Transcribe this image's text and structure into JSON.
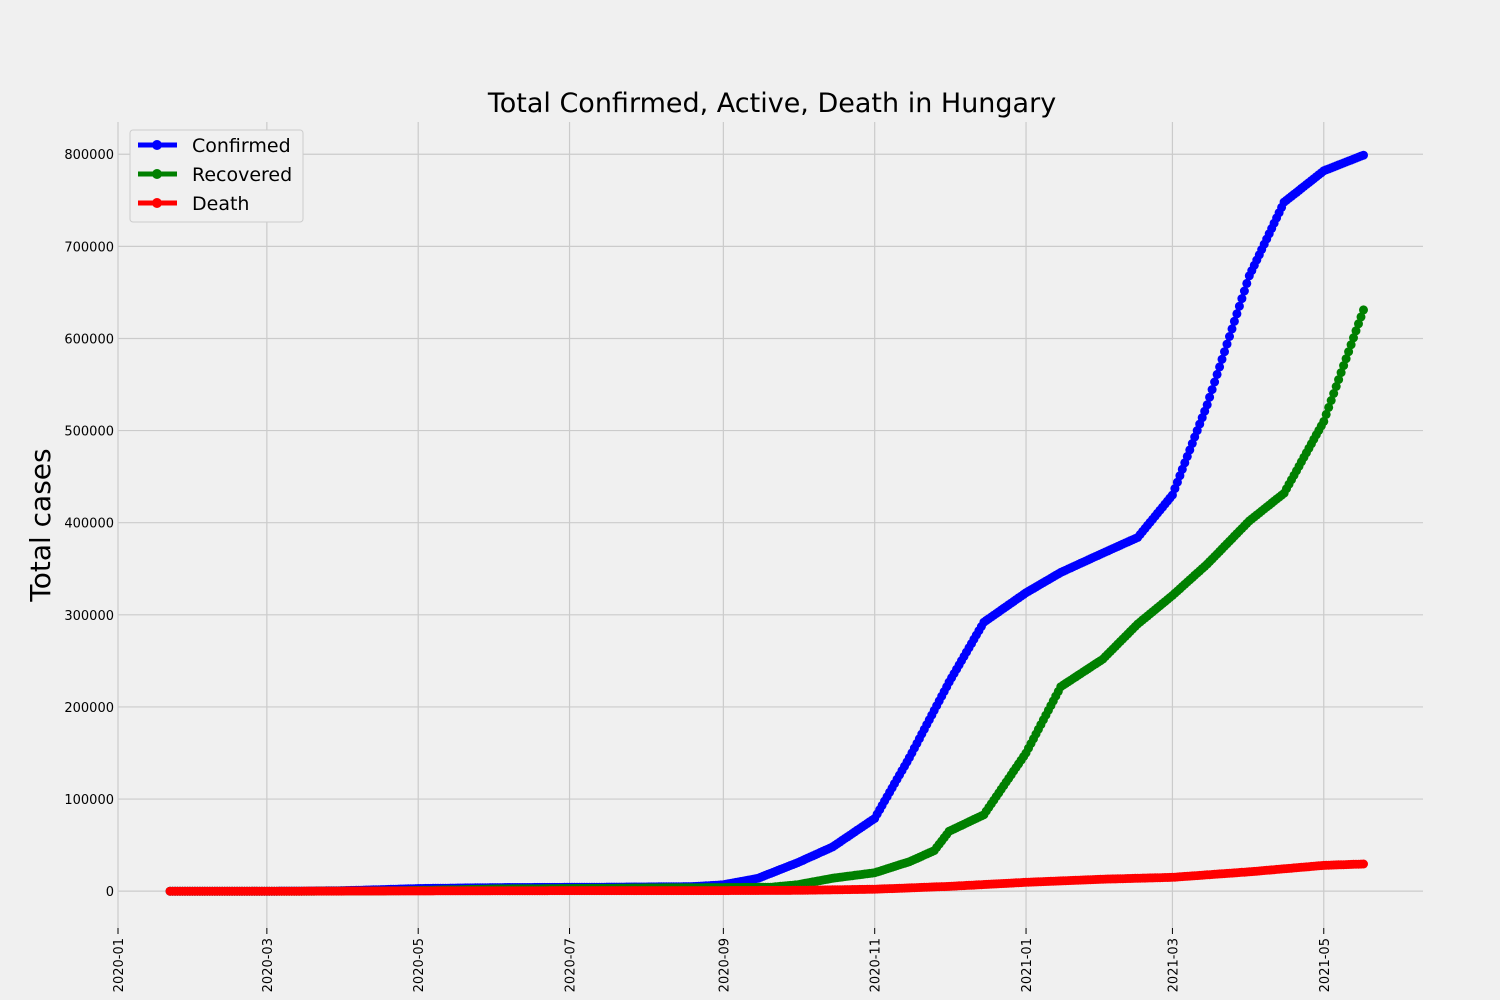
{
  "chart_data": {
    "type": "line",
    "title": "Total Confirmed, Active, Death in Hungary",
    "xlabel": "",
    "ylabel": "Total cases",
    "x_range": [
      "2020-01-01",
      "2021-06-10"
    ],
    "ylim": [
      -40000,
      835000
    ],
    "grid": true,
    "legend_position": "top-left",
    "x_ticks": [
      "2020-01",
      "2020-03",
      "2020-05",
      "2020-07",
      "2020-09",
      "2020-11",
      "2021-01",
      "2021-03",
      "2021-05"
    ],
    "y_ticks": [
      0,
      100000,
      200000,
      300000,
      400000,
      500000,
      600000,
      700000,
      800000
    ],
    "date_start": "2020-01-22",
    "date_end": "2021-05-17",
    "series": [
      {
        "name": "Confirmed",
        "color": "#0000ff",
        "points": [
          [
            "2020-01-22",
            0
          ],
          [
            "2020-03-04",
            0
          ],
          [
            "2020-03-15",
            32
          ],
          [
            "2020-04-01",
            585
          ],
          [
            "2020-04-15",
            1580
          ],
          [
            "2020-05-01",
            2863
          ],
          [
            "2020-06-01",
            3876
          ],
          [
            "2020-07-01",
            4155
          ],
          [
            "2020-08-01",
            4564
          ],
          [
            "2020-08-20",
            5000
          ],
          [
            "2020-09-01",
            6923
          ],
          [
            "2020-09-15",
            14000
          ],
          [
            "2020-10-01",
            31000
          ],
          [
            "2020-10-15",
            48000
          ],
          [
            "2020-11-01",
            79000
          ],
          [
            "2020-11-15",
            145000
          ],
          [
            "2020-12-01",
            227000
          ],
          [
            "2020-12-15",
            292000
          ],
          [
            "2021-01-01",
            324000
          ],
          [
            "2021-01-15",
            346000
          ],
          [
            "2021-02-01",
            367000
          ],
          [
            "2021-02-15",
            384000
          ],
          [
            "2021-03-01",
            430000
          ],
          [
            "2021-03-15",
            528000
          ],
          [
            "2021-04-01",
            668000
          ],
          [
            "2021-04-15",
            748000
          ],
          [
            "2021-05-01",
            782000
          ],
          [
            "2021-05-17",
            799000
          ]
        ]
      },
      {
        "name": "Recovered",
        "color": "#008000",
        "points": [
          [
            "2020-01-22",
            0
          ],
          [
            "2020-03-20",
            0
          ],
          [
            "2020-04-15",
            250
          ],
          [
            "2020-05-01",
            800
          ],
          [
            "2020-06-01",
            2400
          ],
          [
            "2020-07-01",
            2900
          ],
          [
            "2020-08-01",
            3500
          ],
          [
            "2020-09-01",
            3900
          ],
          [
            "2020-09-20",
            4200
          ],
          [
            "2020-10-01",
            7000
          ],
          [
            "2020-10-15",
            14000
          ],
          [
            "2020-11-01",
            20000
          ],
          [
            "2020-11-15",
            32000
          ],
          [
            "2020-11-25",
            44000
          ],
          [
            "2020-12-01",
            65000
          ],
          [
            "2020-12-15",
            83000
          ],
          [
            "2021-01-01",
            150000
          ],
          [
            "2021-01-15",
            222000
          ],
          [
            "2021-02-01",
            252000
          ],
          [
            "2021-02-15",
            290000
          ],
          [
            "2021-03-01",
            321000
          ],
          [
            "2021-03-15",
            355000
          ],
          [
            "2021-04-01",
            402000
          ],
          [
            "2021-04-15",
            432000
          ],
          [
            "2021-05-01",
            510000
          ],
          [
            "2021-05-17",
            631000
          ]
        ]
      },
      {
        "name": "Death",
        "color": "#ff0000",
        "points": [
          [
            "2020-01-22",
            0
          ],
          [
            "2020-03-15",
            0
          ],
          [
            "2020-05-01",
            300
          ],
          [
            "2020-07-01",
            590
          ],
          [
            "2020-09-01",
            630
          ],
          [
            "2020-10-01",
            900
          ],
          [
            "2020-11-01",
            2100
          ],
          [
            "2020-12-01",
            5200
          ],
          [
            "2021-01-01",
            9600
          ],
          [
            "2021-02-01",
            13000
          ],
          [
            "2021-03-01",
            15000
          ],
          [
            "2021-04-01",
            21000
          ],
          [
            "2021-05-01",
            28000
          ],
          [
            "2021-05-17",
            29500
          ]
        ]
      }
    ]
  }
}
